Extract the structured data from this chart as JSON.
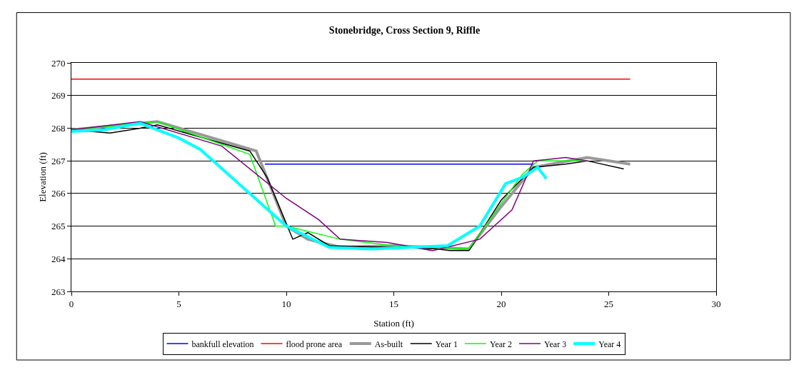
{
  "chart_data": {
    "type": "line",
    "title": "Stonebridge, Cross Section 9, Riffle",
    "xlabel": "Station (ft)",
    "ylabel": "Elevation (ft)",
    "xlim": [
      0,
      30
    ],
    "xticks": [
      0,
      5,
      10,
      15,
      20,
      25,
      30
    ],
    "ylim": [
      263,
      270
    ],
    "yticks": [
      263,
      264,
      265,
      266,
      267,
      268,
      269,
      270
    ],
    "grid": "y",
    "legend": "bottom",
    "marker": "none",
    "line_style": "solid",
    "series": [
      {
        "name": "bankfull elevation",
        "color": "#0000ff",
        "x": [
          9,
          21.5
        ],
        "values": [
          266.9,
          266.9
        ]
      },
      {
        "name": "flood prone area",
        "color": "#ff0000",
        "x": [
          0,
          26
        ],
        "values": [
          269.5,
          269.5
        ]
      },
      {
        "name": "As-built",
        "color": "#999999",
        "x": [
          0,
          4,
          8.6,
          10,
          11,
          12.5,
          15,
          18.5,
          20,
          21.5,
          24,
          26
        ],
        "values": [
          267.95,
          268.2,
          267.3,
          265,
          264.6,
          264.35,
          264.4,
          264.3,
          265.6,
          266.8,
          267.1,
          266.9
        ]
      },
      {
        "name": "Year 1",
        "color": "#000000",
        "x": [
          0,
          1.8,
          3.2,
          4,
          8.3,
          9.1,
          10.3,
          11,
          12,
          15,
          17,
          17.6,
          18.5,
          20,
          21.5,
          23,
          24,
          25.7
        ],
        "values": [
          267.95,
          267.85,
          268,
          268.1,
          267.3,
          266.5,
          264.6,
          264.8,
          264.4,
          264.35,
          264.3,
          264.25,
          264.25,
          265.8,
          266.8,
          266.9,
          267,
          266.75
        ]
      },
      {
        "name": "Year 2",
        "color": "#00ff00",
        "x": [
          0,
          4,
          8.3,
          9.5,
          10,
          12.5,
          15,
          18.5,
          20,
          21,
          21.7,
          24
        ],
        "values": [
          267.95,
          268.2,
          267.2,
          265,
          265,
          264.6,
          264.4,
          264.3,
          265.7,
          266.6,
          267,
          267
        ]
      },
      {
        "name": "Year 3",
        "color": "#800080",
        "x": [
          0,
          3.2,
          7,
          10,
          11.5,
          12.5,
          14.7,
          16.8,
          19,
          20.5,
          21.5,
          23,
          24
        ],
        "values": [
          267.95,
          268.2,
          267.45,
          265.85,
          265.2,
          264.6,
          264.5,
          264.25,
          264.6,
          265.5,
          267,
          267.1,
          267
        ]
      },
      {
        "name": "Year 4",
        "color": "#00ffff",
        "x": [
          0,
          1.5,
          3.2,
          5,
          6,
          10,
          12,
          14,
          17.5,
          19,
          20.2,
          21,
          21.7,
          22.1
        ],
        "values": [
          267.9,
          267.95,
          268.15,
          267.7,
          267.35,
          265,
          264.35,
          264.3,
          264.4,
          265,
          266.3,
          266.5,
          266.8,
          266.45
        ]
      }
    ]
  }
}
